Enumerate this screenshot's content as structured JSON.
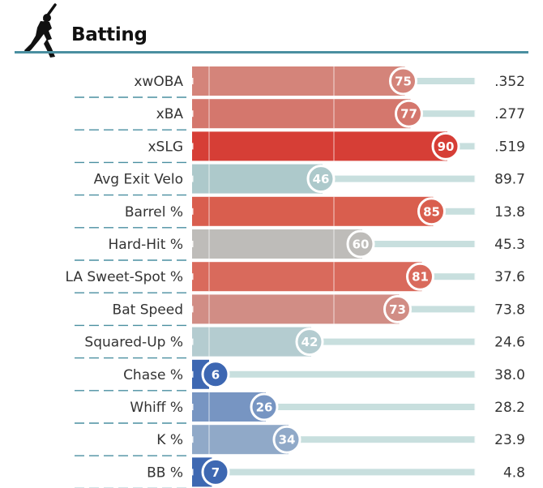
{
  "section": {
    "title": "Batting"
  },
  "chart_data": {
    "type": "bar",
    "title": "Batting",
    "value_axis": "percentile",
    "xlim": [
      0,
      100
    ],
    "categories": [
      "xwOBA",
      "xBA",
      "xSLG",
      "Avg Exit Velo",
      "Barrel %",
      "Hard-Hit %",
      "LA Sweet-Spot %",
      "Bat Speed",
      "Squared-Up %",
      "Chase %",
      "Whiff %",
      "K %",
      "BB %"
    ],
    "series": [
      {
        "name": "Percentile",
        "values": [
          75,
          77,
          90,
          46,
          85,
          60,
          81,
          73,
          42,
          6,
          26,
          34,
          7
        ]
      },
      {
        "name": "Stat",
        "values": [
          ".352",
          ".277",
          ".519",
          "89.7",
          "13.8",
          "45.3",
          "37.6",
          "73.8",
          "24.6",
          "38.0",
          "28.2",
          "23.9",
          "4.8"
        ]
      }
    ],
    "bar_colors": [
      "#d4847a",
      "#d4776d",
      "#d63e36",
      "#adc9cb",
      "#d95e4e",
      "#bebcb9",
      "#d96a5c",
      "#d18d85",
      "#b4ccd0",
      "#3d67b2",
      "#7795c2",
      "#90a9c8",
      "#3e68b2"
    ]
  }
}
